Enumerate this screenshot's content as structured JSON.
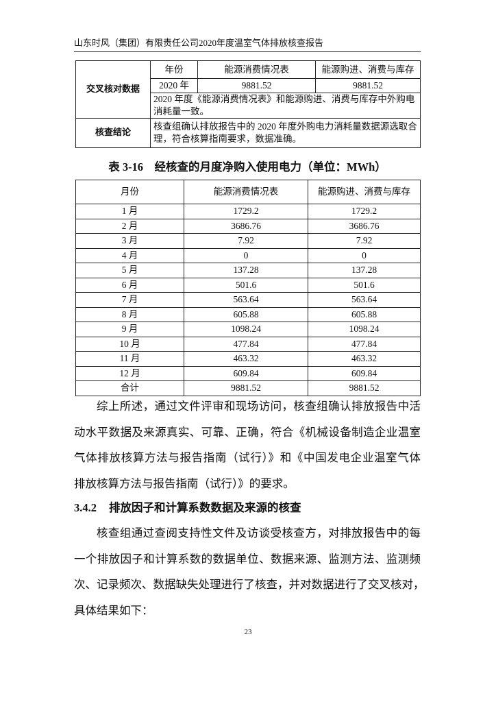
{
  "header": {
    "title": "山东时风（集团）有限责任公司2020年度温室气体排放核查报告"
  },
  "cross_check_table": {
    "row_label": "交叉核对数据",
    "columns": [
      "年份",
      "能源消费情况表",
      "能源购进、消费与库存"
    ],
    "values": [
      "2020 年",
      "9881.52",
      "9881.52"
    ],
    "note": "2020 年度《能源消费情况表》和能源购进、消费与库存中外购电消耗量一致。",
    "conclusion_label": "核查结论",
    "conclusion": "核查组确认排放报告中的 2020 年度外购电力消耗量数据源选取合理，符合核算指南要求，数据准确。"
  },
  "table_caption": "表 3-16　经核查的月度净购入使用电力（单位：MWh）",
  "monthly_table": {
    "columns": [
      "月份",
      "能源消费情况表",
      "能源购进、消费与库存"
    ],
    "rows": [
      [
        "1 月",
        "1729.2",
        "1729.2"
      ],
      [
        "2 月",
        "3686.76",
        "3686.76"
      ],
      [
        "3 月",
        "7.92",
        "7.92"
      ],
      [
        "4 月",
        "0",
        "0"
      ],
      [
        "5 月",
        "137.28",
        "137.28"
      ],
      [
        "6 月",
        "501.6",
        "501.6"
      ],
      [
        "7 月",
        "563.64",
        "563.64"
      ],
      [
        "8 月",
        "605.88",
        "605.88"
      ],
      [
        "9 月",
        "1098.24",
        "1098.24"
      ],
      [
        "10 月",
        "477.84",
        "477.84"
      ],
      [
        "11 月",
        "463.32",
        "463.32"
      ],
      [
        "12 月",
        "609.84",
        "609.84"
      ],
      [
        "合计",
        "9881.52",
        "9881.52"
      ]
    ]
  },
  "paragraph1": [
    "综上所述，通过文件评审和现场访问，核查组确认排放报告中活",
    "动水平数据及来源真实、可靠、正确，符合《机械设备制造企业温室",
    "气体排放核算方法与报告指南（试行）》和《中国发电企业温室气体",
    "排放核算方法与报告指南（试行）》的要求。"
  ],
  "section": {
    "number": "3.4.2",
    "title": "排放因子和计算系数数据及来源的核查"
  },
  "paragraph2": [
    "核查组通过查阅支持性文件及访谈受核查方，对排放报告中的每",
    "一个排放因子和计算系数的数据单位、数据来源、监测方法、监测频",
    "次、记录频次、数据缺失处理进行了核查，并对数据进行了交叉核对，",
    "具体结果如下："
  ],
  "page_number": "23"
}
